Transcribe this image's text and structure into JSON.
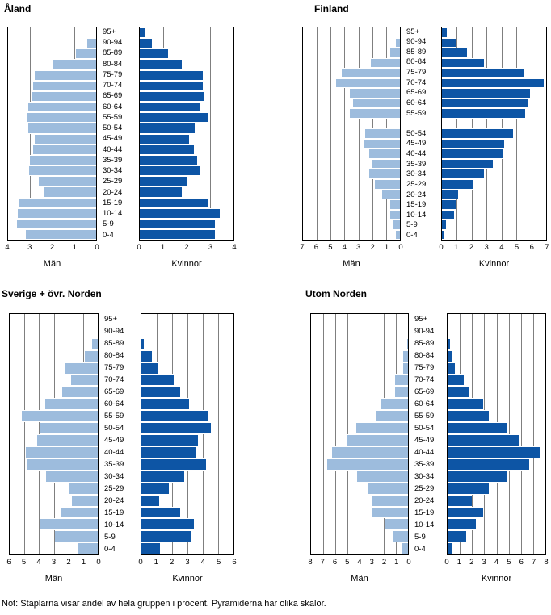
{
  "note": "Not: Staplarna visar andel av hela gruppen i procent. Pyramiderna har olika skalor.",
  "axis_titles": {
    "men": "Män",
    "women": "Kvinnor"
  },
  "colors": {
    "men_bar": "#9dbcdd",
    "women_bar": "#0d55a5",
    "gridline": "#7f7f7f",
    "plot_border": "#000000",
    "text": "#000000"
  },
  "chart_data": [
    {
      "type": "bar",
      "title": "Åland",
      "subtitle": "",
      "layout": "population-pyramid",
      "axis_max": 4,
      "tick_step": 1,
      "grid": true,
      "xlabel_left": "Män",
      "xlabel_right": "Kvinnor",
      "ylim_each_side": [
        0,
        4
      ],
      "categories": [
        "95+",
        "90-94",
        "85-89",
        "80-84",
        "75-79",
        "70-74",
        "65-69",
        "60-64",
        "55-59",
        "50-54",
        "45-49",
        "40-44",
        "35-39",
        "30-34",
        "25-29",
        "20-24",
        "15-19",
        "10-14",
        "5-9",
        "0-4"
      ],
      "series": [
        {
          "name": "Män",
          "side": "left",
          "values": [
            0,
            0.4,
            0.9,
            2.0,
            2.8,
            2.85,
            2.9,
            3.1,
            3.15,
            3.1,
            2.8,
            2.85,
            3.0,
            3.05,
            2.6,
            2.4,
            3.5,
            3.55,
            3.6,
            3.2
          ]
        },
        {
          "name": "Kvinnor",
          "side": "right",
          "values": [
            0.2,
            0.5,
            1.2,
            1.8,
            2.7,
            2.7,
            2.75,
            2.6,
            2.9,
            2.35,
            2.1,
            2.3,
            2.45,
            2.6,
            2.05,
            1.8,
            2.9,
            3.4,
            3.2,
            3.2
          ]
        }
      ]
    },
    {
      "type": "bar",
      "title": "Finland",
      "subtitle": "",
      "layout": "population-pyramid",
      "axis_max": 7,
      "tick_step": 1,
      "grid": true,
      "xlabel_left": "Män",
      "xlabel_right": "Kvinnor",
      "ylim_each_side": [
        0,
        7
      ],
      "categories": [
        "95+",
        "90-94",
        "85-89",
        "80-84",
        "75-79",
        "70-74",
        "65-69",
        "60-64",
        "55-59",
        "",
        "50-54",
        "45-49",
        "40-44",
        "35-39",
        "30-34",
        "25-29",
        "20-24",
        "15-19",
        "10-14",
        "5-9",
        "0-4"
      ],
      "series": [
        {
          "name": "Män",
          "side": "left",
          "values": [
            0,
            0.3,
            0.7,
            2.1,
            4.2,
            4.6,
            3.6,
            3.4,
            3.6,
            null,
            2.5,
            2.6,
            2.2,
            2.0,
            2.2,
            1.8,
            1.3,
            0.7,
            0.7,
            0.45,
            0.3
          ]
        },
        {
          "name": "Kvinnor",
          "side": "right",
          "values": [
            0.3,
            0.9,
            1.7,
            2.8,
            5.5,
            6.85,
            5.9,
            5.8,
            5.6,
            null,
            4.8,
            4.2,
            4.1,
            3.4,
            2.8,
            2.1,
            1.1,
            0.9,
            0.8,
            0.25,
            0.1
          ]
        }
      ]
    },
    {
      "type": "bar",
      "title": "Sverige + övr. Norden",
      "subtitle": "",
      "layout": "population-pyramid",
      "axis_max": 6,
      "tick_step": 1,
      "grid": true,
      "xlabel_left": "Män",
      "xlabel_right": "Kvinnor",
      "ylim_each_side": [
        0,
        6
      ],
      "categories": [
        "95+",
        "90-94",
        "85-89",
        "80-84",
        "75-79",
        "70-74",
        "65-69",
        "60-64",
        "55-59",
        "50-54",
        "45-49",
        "40-44",
        "35-39",
        "30-34",
        "25-29",
        "20-24",
        "15-19",
        "10-14",
        "5-9",
        "0-4"
      ],
      "series": [
        {
          "name": "Män",
          "side": "left",
          "values": [
            0,
            0,
            0.4,
            0.9,
            2.2,
            1.8,
            2.45,
            3.6,
            5.2,
            3.95,
            4.15,
            4.9,
            4.8,
            3.5,
            1.9,
            1.75,
            2.5,
            3.9,
            2.9,
            1.3
          ]
        },
        {
          "name": "Kvinnor",
          "side": "right",
          "values": [
            0,
            0,
            0.15,
            0.7,
            1.1,
            2.1,
            2.55,
            3.1,
            4.3,
            4.5,
            3.7,
            3.6,
            4.2,
            2.8,
            1.8,
            1.15,
            2.5,
            3.4,
            3.2,
            1.2
          ]
        }
      ]
    },
    {
      "type": "bar",
      "title": "Utom Norden",
      "subtitle": "",
      "layout": "population-pyramid",
      "axis_max": 8,
      "tick_step": 1,
      "grid": true,
      "xlabel_left": "Män",
      "xlabel_right": "Kvinnor",
      "ylim_each_side": [
        0,
        8
      ],
      "categories": [
        "95+",
        "90-94",
        "85-89",
        "80-84",
        "75-79",
        "70-74",
        "65-69",
        "60-64",
        "55-59",
        "50-54",
        "45-49",
        "40-44",
        "35-39",
        "30-34",
        "25-29",
        "20-24",
        "15-19",
        "10-14",
        "5-9",
        "0-4"
      ],
      "series": [
        {
          "name": "Män",
          "side": "left",
          "values": [
            0,
            0,
            0.1,
            0.4,
            0.4,
            1.1,
            1.1,
            2.3,
            2.6,
            4.3,
            5.1,
            6.3,
            6.7,
            4.2,
            3.3,
            3.0,
            3.0,
            1.9,
            1.2,
            0.5
          ]
        },
        {
          "name": "Kvinnor",
          "side": "right",
          "values": [
            0,
            0,
            0.2,
            0.3,
            0.6,
            1.3,
            1.7,
            2.9,
            3.4,
            4.8,
            5.8,
            7.6,
            6.7,
            4.8,
            3.4,
            2.0,
            2.9,
            2.3,
            1.5,
            0.4
          ]
        }
      ]
    }
  ]
}
